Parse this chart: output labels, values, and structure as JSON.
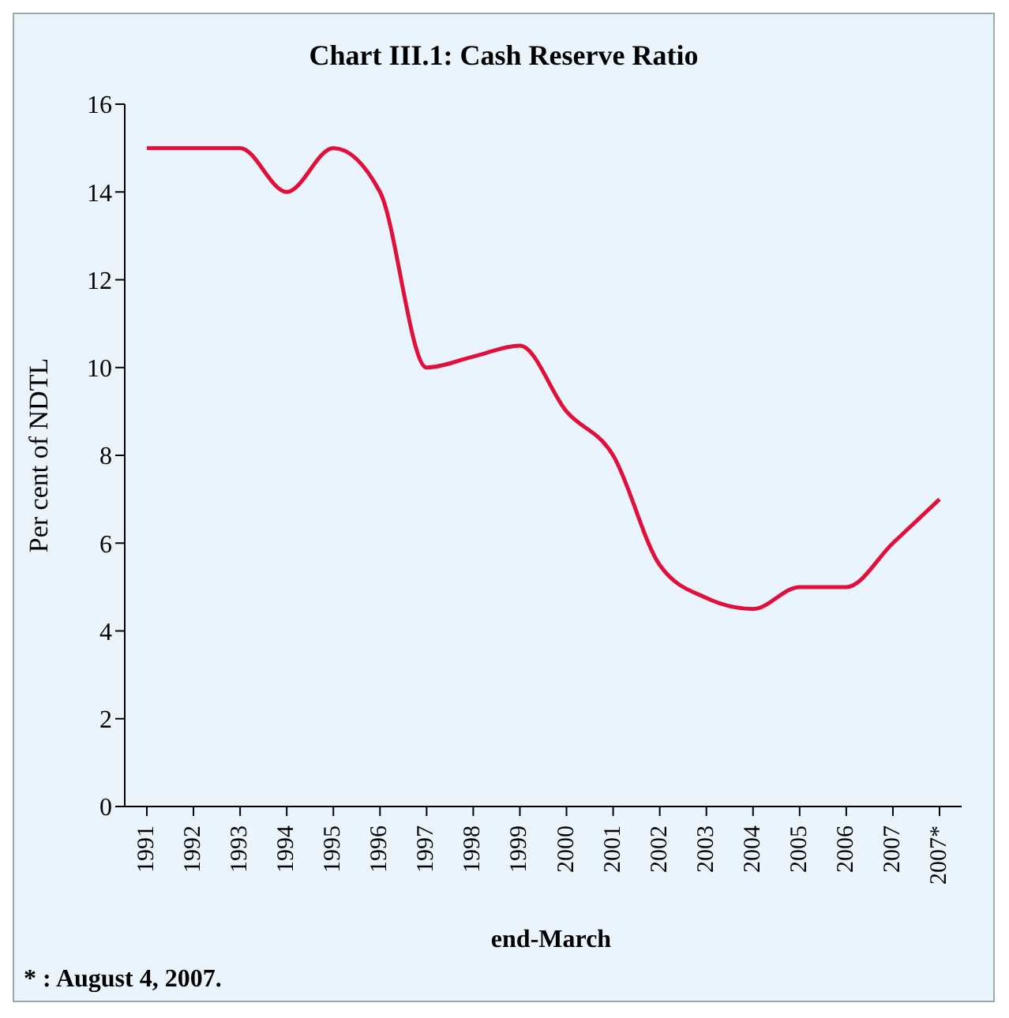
{
  "chart_data": {
    "type": "line",
    "title": "Chart III.1: Cash Reserve Ratio",
    "xlabel": "end-March",
    "ylabel": "Per cent of NDTL",
    "categories": [
      "1991",
      "1992",
      "1993",
      "1994",
      "1995",
      "1996",
      "1997",
      "1998",
      "1999",
      "2000",
      "2001",
      "2002",
      "2003",
      "2004",
      "2005",
      "2006",
      "2007",
      "2007*"
    ],
    "series": [
      {
        "color": "#e0103a",
        "values": [
          15,
          15,
          15,
          14,
          15,
          14,
          10,
          10.25,
          10.5,
          9,
          8,
          5.5,
          4.75,
          4.5,
          5,
          5,
          6,
          7
        ]
      }
    ],
    "ylim": [
      0,
      16
    ],
    "yticks": [
      0,
      2,
      4,
      6,
      8,
      10,
      12,
      14,
      16
    ],
    "grid": false,
    "legend": false,
    "marker": "none",
    "line_style": "solid",
    "annotations": [
      "* : August 4, 2007."
    ]
  }
}
